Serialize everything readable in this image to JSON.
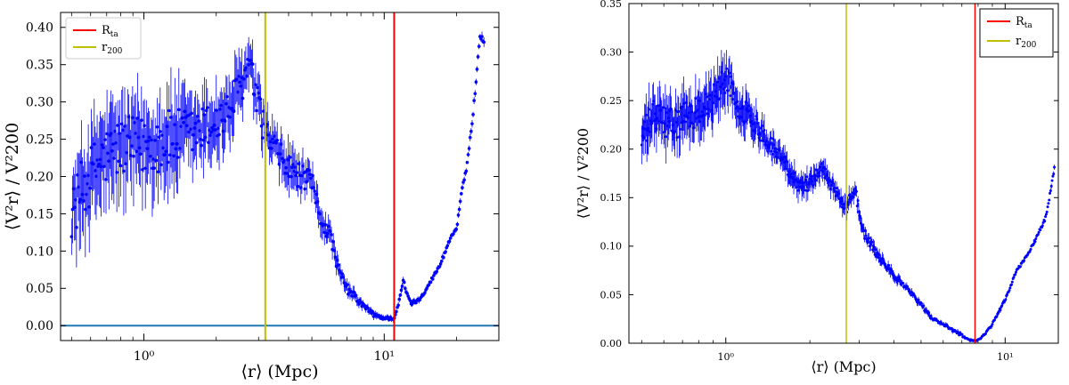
{
  "chart_data": [
    {
      "type": "scatter",
      "x_scale": "log",
      "xlim": [
        0.45,
        30
      ],
      "ylim": [
        -0.02,
        0.42
      ],
      "x_ticks": [
        {
          "value": 1,
          "label": "10⁰"
        },
        {
          "value": 10,
          "label": "10¹"
        }
      ],
      "y_ticks": [
        {
          "value": 0.0,
          "label": "0.00"
        },
        {
          "value": 0.05,
          "label": "0.05"
        },
        {
          "value": 0.1,
          "label": "0.10"
        },
        {
          "value": 0.15,
          "label": "0.15"
        },
        {
          "value": 0.2,
          "label": "0.20"
        },
        {
          "value": 0.25,
          "label": "0.25"
        },
        {
          "value": 0.3,
          "label": "0.30"
        },
        {
          "value": 0.35,
          "label": "0.35"
        },
        {
          "value": 0.4,
          "label": "0.40"
        }
      ],
      "xlabel": {
        "pre": "⟨r⟩ (Mpc)"
      },
      "ylabel": {
        "text": "⟨V²r⟩ / V²200"
      },
      "legend": {
        "position": "top-left",
        "entries": [
          {
            "base": "R",
            "sub": "ta",
            "color": "#ff0000"
          },
          {
            "base": "r",
            "sub": "200",
            "color": "#bfbf00"
          }
        ]
      },
      "vlines": [
        {
          "x": 11.0,
          "color": "#ff0000"
        },
        {
          "x": 3.2,
          "color": "#bfbf00"
        }
      ],
      "hline": {
        "y": 0.0,
        "color": "#1f77b4"
      },
      "series_color": "#0000ff",
      "error_scale": 1.0,
      "curve": {
        "x": [
          0.5,
          0.55,
          0.65,
          0.8,
          1.0,
          1.3,
          1.7,
          2.2,
          2.6,
          2.75,
          3.0,
          3.3,
          3.6,
          4.0,
          4.5,
          5.0,
          5.5,
          6.0,
          6.5,
          7.0,
          8.0,
          9.0,
          10.0,
          11.0,
          11.5,
          12.0,
          12.5,
          13.0,
          14.0,
          15.0,
          17.0,
          19.0,
          20.0,
          21.0,
          22.0,
          23.0,
          24.0,
          25.0,
          26.0
        ],
        "y": [
          0.15,
          0.18,
          0.22,
          0.24,
          0.24,
          0.25,
          0.26,
          0.28,
          0.33,
          0.35,
          0.29,
          0.25,
          0.23,
          0.21,
          0.2,
          0.19,
          0.14,
          0.12,
          0.07,
          0.05,
          0.03,
          0.015,
          0.01,
          0.01,
          0.03,
          0.06,
          0.04,
          0.03,
          0.035,
          0.05,
          0.08,
          0.12,
          0.13,
          0.18,
          0.21,
          0.26,
          0.32,
          0.39,
          0.38
        ],
        "error": [
          0.04,
          0.05,
          0.05,
          0.05,
          0.05,
          0.05,
          0.04,
          0.035,
          0.03,
          0.03,
          0.03,
          0.025,
          0.025,
          0.025,
          0.02,
          0.02,
          0.015,
          0.012,
          0.01,
          0.008,
          0.005,
          0.004,
          0.003,
          0.003,
          0.003,
          0.004,
          0.003,
          0.003,
          0.003,
          0.003,
          0.003,
          0.003,
          0.003,
          0.003,
          0.003,
          0.004,
          0.005,
          0.005,
          0.005
        ]
      }
    },
    {
      "type": "scatter",
      "x_scale": "log",
      "xlim": [
        0.45,
        15.5
      ],
      "ylim": [
        0.0,
        0.35
      ],
      "x_ticks": [
        {
          "value": 1,
          "label": "10⁰"
        },
        {
          "value": 10,
          "label": "10¹"
        }
      ],
      "y_ticks": [
        {
          "value": 0.0,
          "label": "0.00"
        },
        {
          "value": 0.05,
          "label": "0.05"
        },
        {
          "value": 0.1,
          "label": "0.10"
        },
        {
          "value": 0.15,
          "label": "0.15"
        },
        {
          "value": 0.2,
          "label": "0.20"
        },
        {
          "value": 0.25,
          "label": "0.25"
        },
        {
          "value": 0.3,
          "label": "0.30"
        },
        {
          "value": 0.35,
          "label": "0.35"
        }
      ],
      "xlabel": {
        "pre": "⟨r⟩ (Mpc)"
      },
      "ylabel": {
        "text": "⟨V²r⟩ / V²200"
      },
      "legend": {
        "position": "top-right",
        "entries": [
          {
            "base": "R",
            "sub": "ta",
            "color": "#ff0000"
          },
          {
            "base": "r",
            "sub": "200",
            "color": "#bfbf00"
          }
        ]
      },
      "vlines": [
        {
          "x": 7.8,
          "color": "#ff0000"
        },
        {
          "x": 2.7,
          "color": "#bfbf00"
        }
      ],
      "series_color": "#0000ff",
      "error_scale": 1.0,
      "curve": {
        "x": [
          0.5,
          0.55,
          0.65,
          0.8,
          0.9,
          1.0,
          1.1,
          1.25,
          1.4,
          1.6,
          1.8,
          2.0,
          2.2,
          2.5,
          2.7,
          2.9,
          3.1,
          3.5,
          4.0,
          4.5,
          5.0,
          5.5,
          6.0,
          7.0,
          7.5,
          8.0,
          8.5,
          9.0,
          10.0,
          11.0,
          12.0,
          13.0,
          14.0,
          15.0
        ],
        "y": [
          0.21,
          0.235,
          0.225,
          0.24,
          0.25,
          0.275,
          0.245,
          0.23,
          0.21,
          0.19,
          0.165,
          0.165,
          0.18,
          0.155,
          0.14,
          0.16,
          0.115,
          0.09,
          0.07,
          0.055,
          0.04,
          0.025,
          0.02,
          0.008,
          0.003,
          0.003,
          0.01,
          0.02,
          0.045,
          0.075,
          0.09,
          0.11,
          0.13,
          0.18
        ],
        "error": [
          0.02,
          0.02,
          0.02,
          0.02,
          0.02,
          0.02,
          0.015,
          0.015,
          0.012,
          0.01,
          0.01,
          0.01,
          0.008,
          0.008,
          0.008,
          0.008,
          0.006,
          0.005,
          0.004,
          0.003,
          0.003,
          0.002,
          0.002,
          0.002,
          0.001,
          0.001,
          0.001,
          0.002,
          0.002,
          0.002,
          0.002,
          0.002,
          0.002,
          0.002
        ]
      }
    }
  ]
}
